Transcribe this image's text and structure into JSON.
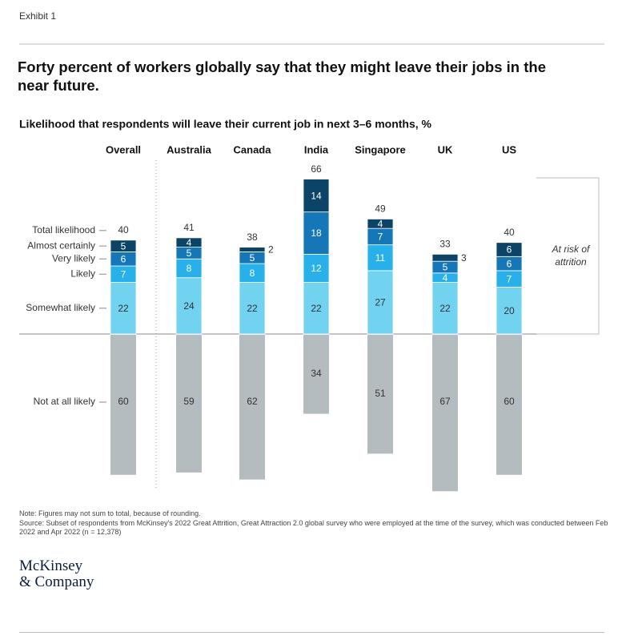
{
  "exhibit": "Exhibit 1",
  "chart_data": {
    "type": "bar",
    "title": "Forty percent of workers globally say that they might leave their jobs in the near future.",
    "subtitle": "Likelihood that respondents will leave their current job in next 3–6 months, %",
    "categories": [
      "Overall",
      "Australia",
      "Canada",
      "India",
      "Singapore",
      "UK",
      "US"
    ],
    "series": [
      {
        "name": "Somewhat likely",
        "color": "#72d3f1",
        "values": [
          22,
          24,
          22,
          22,
          27,
          22,
          20
        ]
      },
      {
        "name": "Likely",
        "color": "#27b0e9",
        "values": [
          7,
          8,
          8,
          12,
          11,
          4,
          7
        ]
      },
      {
        "name": "Very likely",
        "color": "#1677b8",
        "values": [
          6,
          5,
          5,
          18,
          7,
          5,
          6
        ]
      },
      {
        "name": "Almost certainly",
        "color": "#0b4466",
        "values": [
          5,
          4,
          2,
          14,
          4,
          3,
          6
        ]
      }
    ],
    "negative_series": {
      "name": "Not at all likely",
      "color": "#b5bcc0",
      "values": [
        60,
        59,
        62,
        34,
        51,
        67,
        60
      ]
    },
    "totals": {
      "name": "Total likelihood",
      "values": [
        40,
        41,
        38,
        66,
        49,
        33,
        40
      ]
    },
    "annotation": "At risk of attrition"
  },
  "note": "Note: Figures may not sum to total, because of rounding.",
  "source": "Source: Subset of respondents from McKinsey's 2022 Great Attrition, Great Attraction 2.0 global survey who were employed at the time of the survey, which was conducted between Feb 2022 and Apr 2022 (n = 12,378)",
  "logo": [
    "McKinsey",
    "& Company"
  ]
}
